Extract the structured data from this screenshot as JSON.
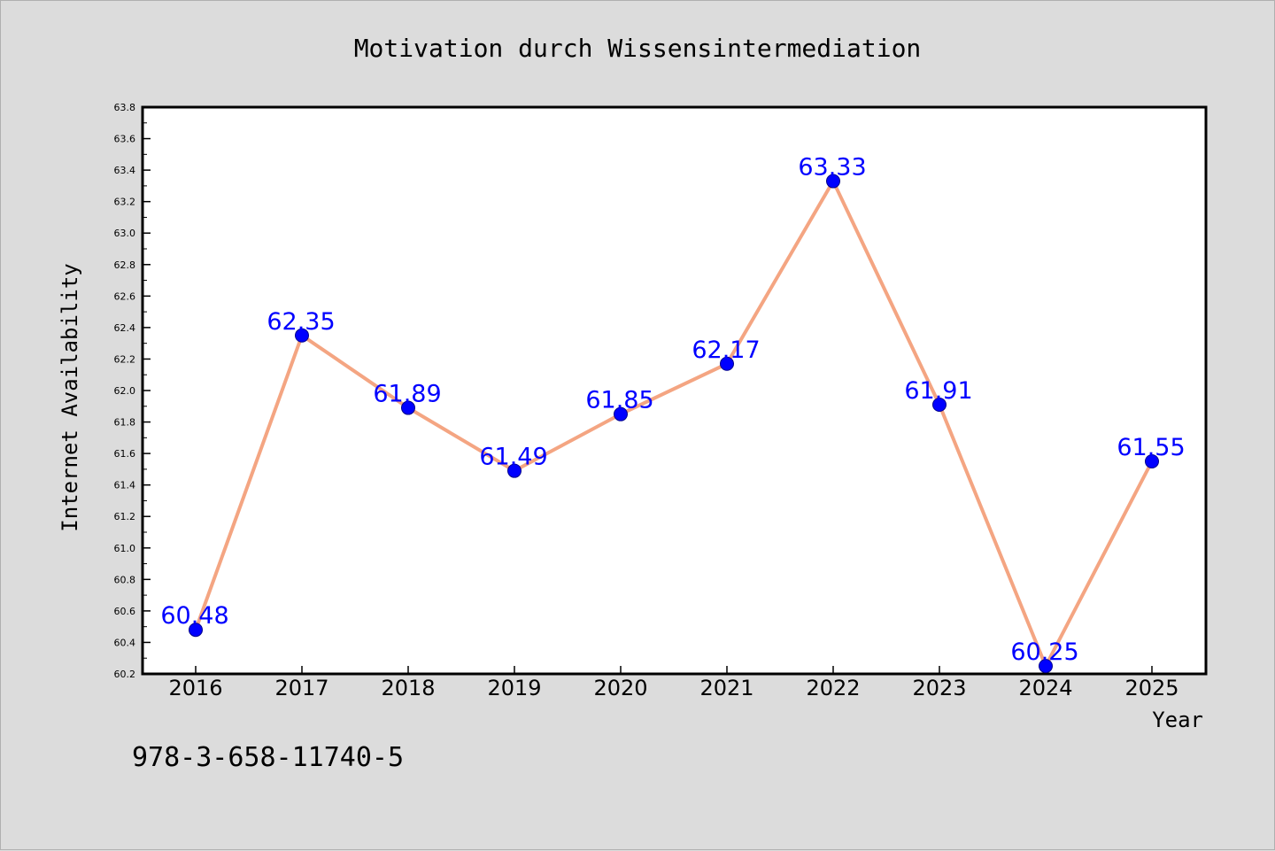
{
  "chart_data": {
    "type": "line",
    "title": "Motivation durch Wissensintermediation",
    "xlabel": "Year",
    "ylabel": "Internet Availability",
    "categories": [
      "2016",
      "2017",
      "2018",
      "2019",
      "2020",
      "2021",
      "2022",
      "2023",
      "2024",
      "2025"
    ],
    "values": [
      60.48,
      62.35,
      61.89,
      61.49,
      61.85,
      62.17,
      63.33,
      61.91,
      60.25,
      61.55
    ],
    "value_labels": [
      "60.48",
      "62.35",
      "61.89",
      "61.49",
      "61.85",
      "62.17",
      "63.33",
      "61.91",
      "60.25",
      "61.55"
    ],
    "ylim": [
      60.2,
      63.8
    ],
    "yticks": [
      "60.2",
      "60.4",
      "60.6",
      "60.8",
      "61.0",
      "61.2",
      "61.4",
      "61.6",
      "61.8",
      "62.0",
      "62.2",
      "62.4",
      "62.6",
      "62.8",
      "63.0",
      "63.2",
      "63.4",
      "63.6",
      "63.8"
    ],
    "grid": false,
    "legend": "none",
    "colors": {
      "line": "#f4a582",
      "marker": "#0000ff",
      "value_label": "#0000ff",
      "background": "#dcdcdc",
      "plot_background": "#ffffff"
    }
  },
  "footer_text": "978-3-658-11740-5"
}
